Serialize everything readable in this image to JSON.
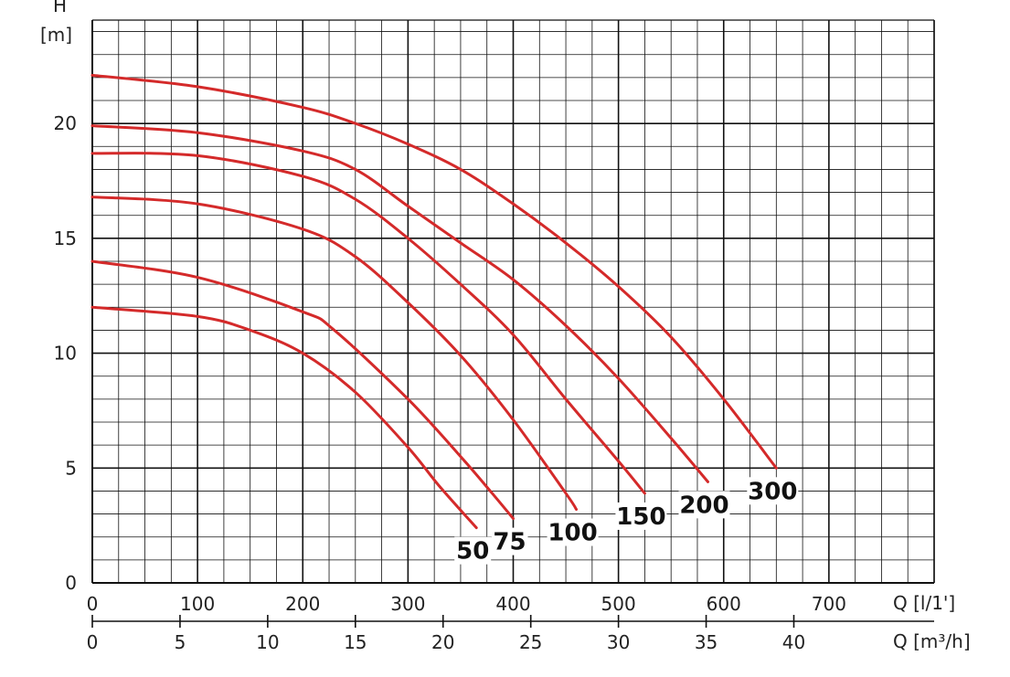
{
  "chart_data": {
    "type": "line",
    "ylabel_line1": "H",
    "ylabel_line2": "[m]",
    "xlabel_primary": "Q [l/1']",
    "xlabel_secondary": "Q [m³/h]",
    "ylim": [
      0,
      24.5
    ],
    "xlim": [
      0,
      800
    ],
    "x_ticks": [
      0,
      100,
      200,
      300,
      400,
      500,
      600,
      700
    ],
    "x_ticks_secondary": [
      0,
      5,
      10,
      15,
      20,
      25,
      30,
      35,
      40
    ],
    "y_ticks": [
      0,
      5,
      10,
      15,
      20
    ],
    "grid": true,
    "series": [
      {
        "name": "50",
        "x": [
          0,
          100,
          150,
          200,
          250,
          300,
          330,
          365
        ],
        "y": [
          12.0,
          11.6,
          11.0,
          10.0,
          8.3,
          5.9,
          4.2,
          2.4
        ]
      },
      {
        "name": "75",
        "x": [
          0,
          100,
          200,
          230,
          300,
          350,
          380,
          400
        ],
        "y": [
          14.0,
          13.3,
          11.8,
          11.0,
          8.0,
          5.5,
          3.9,
          2.8
        ]
      },
      {
        "name": "100",
        "x": [
          0,
          100,
          200,
          250,
          300,
          350,
          400,
          450,
          460
        ],
        "y": [
          16.8,
          16.5,
          15.4,
          14.2,
          12.2,
          9.9,
          7.1,
          3.9,
          3.2
        ]
      },
      {
        "name": "150",
        "x": [
          0,
          100,
          200,
          250,
          300,
          350,
          400,
          450,
          500,
          525
        ],
        "y": [
          18.7,
          18.6,
          17.7,
          16.7,
          15.0,
          13.0,
          10.8,
          8.0,
          5.3,
          3.9
        ]
      },
      {
        "name": "200",
        "x": [
          0,
          100,
          200,
          250,
          300,
          350,
          400,
          450,
          500,
          550,
          585
        ],
        "y": [
          19.9,
          19.6,
          18.8,
          18.0,
          16.4,
          14.8,
          13.2,
          11.2,
          8.9,
          6.3,
          4.4
        ]
      },
      {
        "name": "300",
        "x": [
          0,
          100,
          200,
          250,
          300,
          350,
          400,
          450,
          500,
          550,
          600,
          650
        ],
        "y": [
          22.1,
          21.6,
          20.7,
          20.0,
          19.1,
          18.0,
          16.5,
          14.8,
          12.9,
          10.7,
          8.0,
          5.0
        ]
      }
    ],
    "line_color": "#d42a2a",
    "grid_color": "#111111"
  }
}
